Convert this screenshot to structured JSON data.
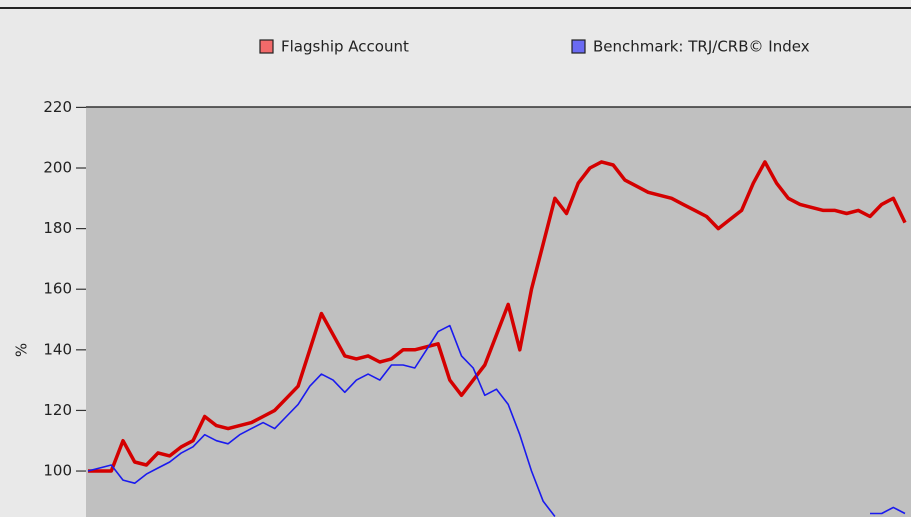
{
  "chart_data": {
    "type": "line",
    "y_label": "%",
    "ylim": [
      85,
      220
    ],
    "yticks": [
      100,
      120,
      140,
      160,
      180,
      200,
      220
    ],
    "series": [
      {
        "name": "Flagship Account",
        "color": "#d40000",
        "legend_color": "#f26a6a",
        "values": [
          100,
          100,
          100,
          110,
          103,
          102,
          106,
          105,
          108,
          110,
          118,
          115,
          114,
          115,
          116,
          118,
          120,
          124,
          128,
          140,
          152,
          145,
          138,
          137,
          138,
          136,
          137,
          140,
          140,
          141,
          142,
          130,
          125,
          130,
          135,
          145,
          155,
          140,
          160,
          175,
          190,
          185,
          195,
          200,
          202,
          201,
          196,
          194,
          192,
          191,
          190,
          188,
          186,
          184,
          180,
          183,
          186,
          195,
          202,
          195,
          190,
          188,
          187,
          186,
          186,
          185,
          186,
          184,
          188,
          190,
          182
        ]
      },
      {
        "name": "Benchmark: TRJ/CRB© Index",
        "color": "#1a1aee",
        "legend_color": "#6a6af2",
        "values": [
          100,
          101,
          102,
          97,
          96,
          99,
          101,
          103,
          106,
          108,
          112,
          110,
          109,
          112,
          114,
          116,
          114,
          118,
          122,
          128,
          132,
          130,
          126,
          130,
          132,
          130,
          135,
          135,
          134,
          140,
          146,
          148,
          138,
          134,
          125,
          127,
          122,
          112,
          100,
          90,
          85,
          null,
          null,
          null,
          null,
          null,
          null,
          null,
          null,
          null,
          null,
          null,
          null,
          null,
          null,
          null,
          null,
          null,
          null,
          null,
          null,
          null,
          null,
          null,
          null,
          null,
          null,
          86,
          86,
          88,
          86
        ]
      }
    ]
  }
}
